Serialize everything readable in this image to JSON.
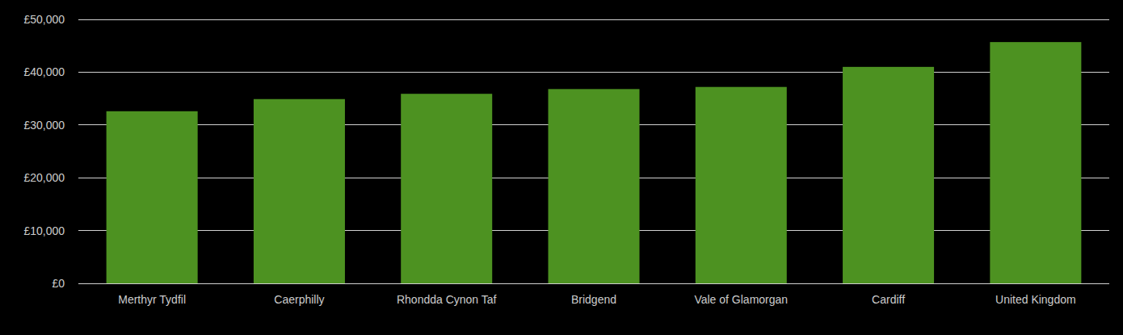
{
  "chart_data": {
    "type": "bar",
    "categories": [
      "Merthyr Tydfil",
      "Caerphilly",
      "Rhondda Cynon Taf",
      "Bridgend",
      "Vale of Glamorgan",
      "Cardiff",
      "United Kingdom"
    ],
    "values": [
      32600,
      34900,
      35900,
      36800,
      37200,
      41000,
      45700
    ],
    "color": "#4d9221",
    "ylim": [
      0,
      50000
    ],
    "yticks": [
      {
        "value": 0,
        "label": "£0"
      },
      {
        "value": 10000,
        "label": "£10,000"
      },
      {
        "value": 20000,
        "label": "£20,000"
      },
      {
        "value": 30000,
        "label": "£30,000"
      },
      {
        "value": 40000,
        "label": "£40,000"
      },
      {
        "value": 50000,
        "label": "£50,000"
      }
    ],
    "grid": true
  }
}
